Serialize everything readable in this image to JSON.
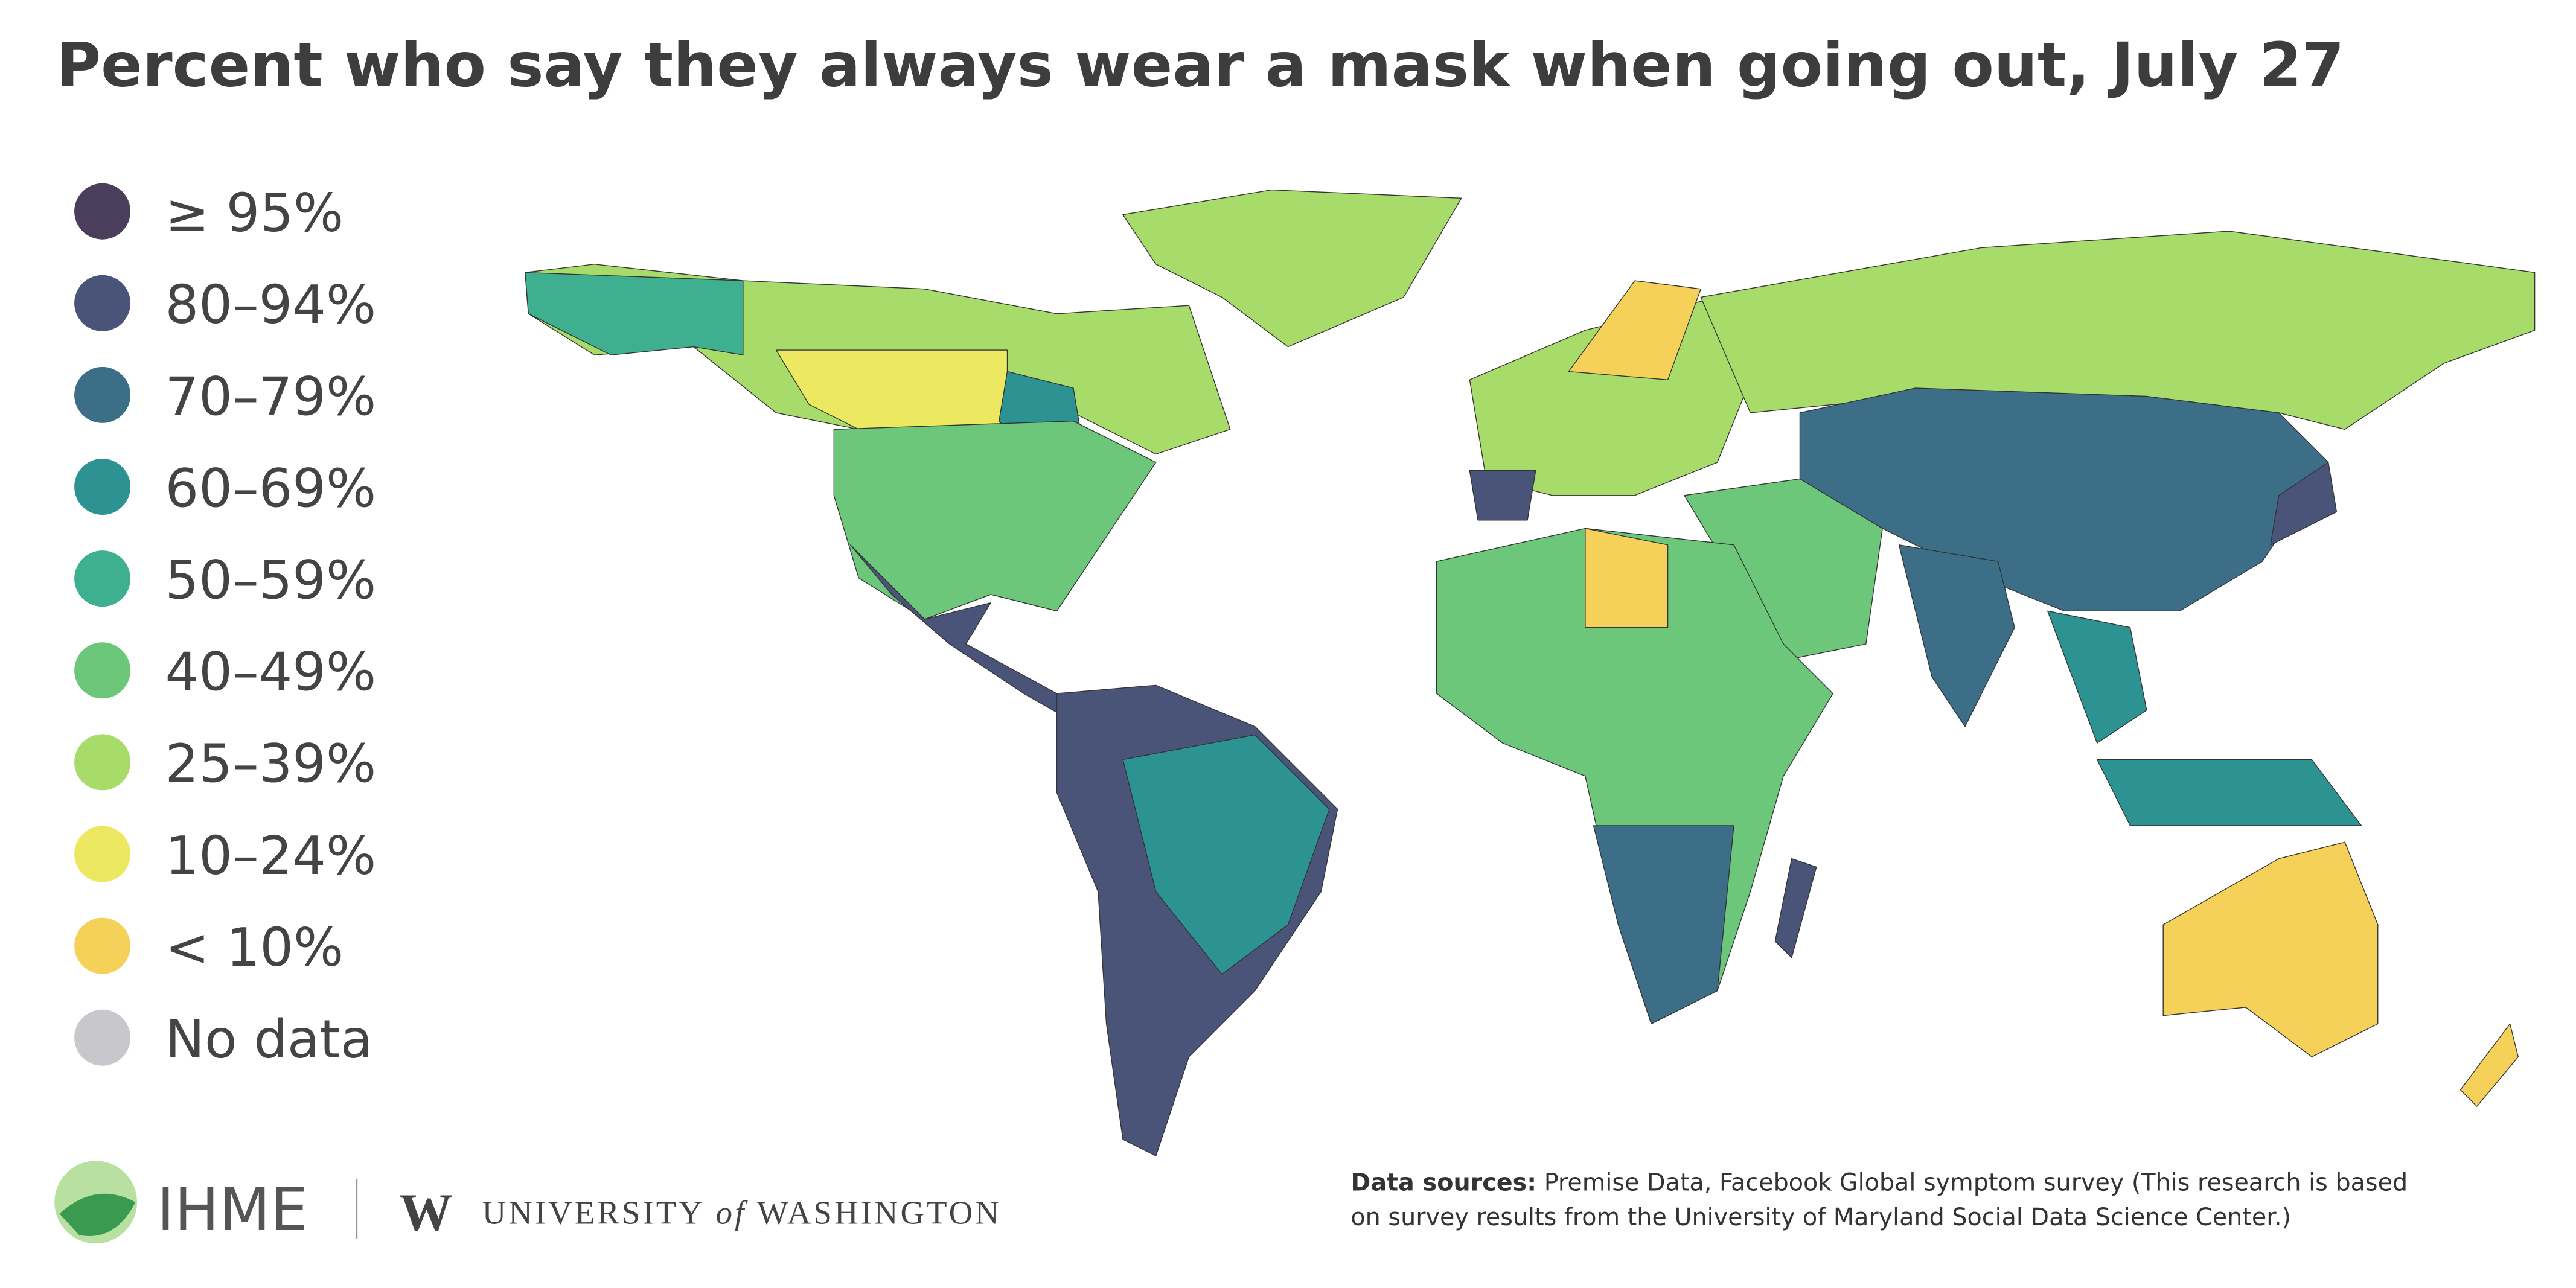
{
  "title": "Percent who say they always wear a mask when going out, July 27",
  "legend": [
    {
      "label": "≥ 95%",
      "color": "#4b3d5c"
    },
    {
      "label": "80–94%",
      "color": "#4a5478"
    },
    {
      "label": "70–79%",
      "color": "#3d6e88"
    },
    {
      "label": "60–69%",
      "color": "#2d9392"
    },
    {
      "label": "50–59%",
      "color": "#3fb08f"
    },
    {
      "label": "40–49%",
      "color": "#6cc77b"
    },
    {
      "label": "25–39%",
      "color": "#a8dc6a"
    },
    {
      "label": "10–24%",
      "color": "#ece960"
    },
    {
      "label": "< 10%",
      "color": "#f5d15a"
    },
    {
      "label": "No data",
      "color": "#c8c8cc"
    }
  ],
  "footer": {
    "ihme": "IHME",
    "w_logo": "W",
    "university": "UNIVERSITY",
    "of": "of",
    "washington": "WASHINGTON",
    "source_label": "Data sources:",
    "source_lines": [
      "Premise Data, Facebook Global symptom survey (This research is based",
      "on survey results from the University of Maryland Social Data Science Center.)"
    ]
  }
}
